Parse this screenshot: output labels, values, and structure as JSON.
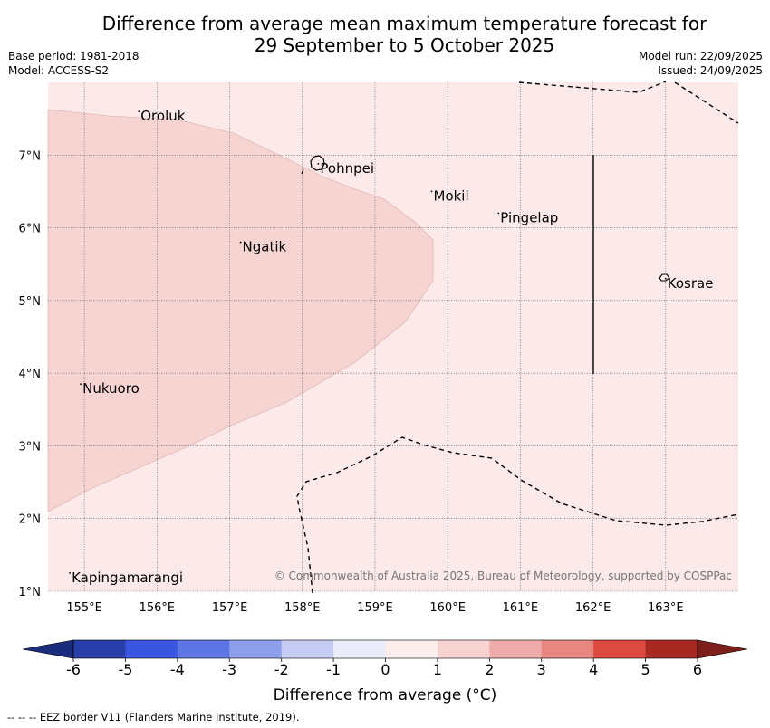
{
  "title": {
    "line1": "Difference from average mean maximum temperature forecast for",
    "line2": "29 September to 5 October 2025"
  },
  "meta": {
    "base_period": "Base period: 1981-2018",
    "model": "Model: ACCESS-S2",
    "model_run": "Model run: 22/09/2025",
    "issued": "Issued: 24/09/2025"
  },
  "map": {
    "lon_range": [
      154.5,
      164.0
    ],
    "lat_range": [
      1.0,
      8.0
    ],
    "lon_ticks": [
      "155°E",
      "156°E",
      "157°E",
      "158°E",
      "159°E",
      "160°E",
      "161°E",
      "162°E",
      "163°E"
    ],
    "lat_ticks": [
      "1°N",
      "2°N",
      "3°N",
      "4°N",
      "5°N",
      "6°N",
      "7°N"
    ],
    "background_color": "#fbeae9",
    "anomaly_region_color": "#f5d4d2",
    "places": [
      {
        "name": "Oroluk",
        "lon": 155.75,
        "lat": 7.6
      },
      {
        "name": "Pohnpei",
        "lon": 158.22,
        "lat": 6.88
      },
      {
        "name": "Mokil",
        "lon": 159.78,
        "lat": 6.5
      },
      {
        "name": "Pingelap",
        "lon": 160.7,
        "lat": 6.2
      },
      {
        "name": "Ngatik",
        "lon": 157.15,
        "lat": 5.8
      },
      {
        "name": "Kosrae",
        "lon": 163.0,
        "lat": 5.3
      },
      {
        "name": "Nukuoro",
        "lon": 154.95,
        "lat": 3.85
      },
      {
        "name": "Kapingamarangi",
        "lon": 154.8,
        "lat": 1.25
      }
    ],
    "copyright": "© Commonwealth of Australia 2025, Bureau of Meteorology, supported by COSPPac"
  },
  "colorbar": {
    "ticks": [
      "-6",
      "-5",
      "-4",
      "-3",
      "-2",
      "-1",
      "0",
      "1",
      "2",
      "3",
      "4",
      "5",
      "6"
    ],
    "colors": [
      "#283ea8",
      "#3a55e0",
      "#5d76e6",
      "#8c9eec",
      "#c6ccf4",
      "#ebecfb",
      "#fdeeed",
      "#f6d3d1",
      "#efabaa",
      "#e88680",
      "#dc4a3f",
      "#a82822"
    ],
    "under_color": "#1b2c7c",
    "over_color": "#7c1e1a",
    "label": "Difference from average (°C)"
  },
  "footnote": "-- -- -- EEZ border V11 (Flanders Marine Institute, 2019)."
}
